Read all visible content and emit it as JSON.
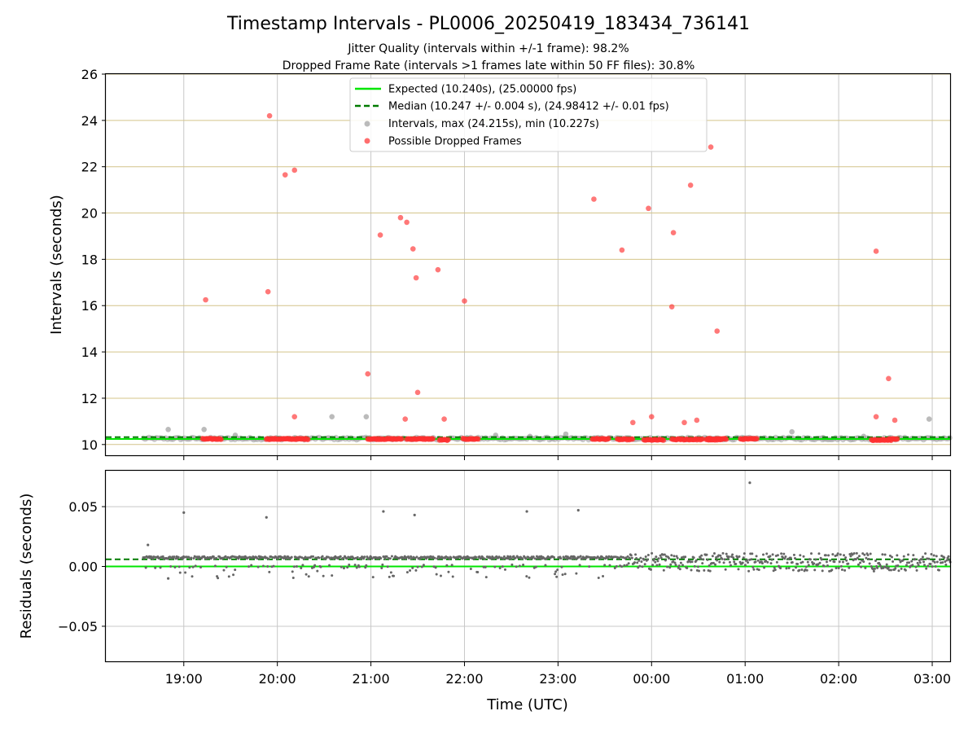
{
  "figure": {
    "title": "Timestamp Intervals - PL0006_20250419_183434_736141",
    "subtitle_1": "Jitter Quality (intervals within +/-1 frame): 98.2%",
    "subtitle_2": "Dropped Frame Rate (intervals >1 frames late within 50 FF files): 30.8%"
  },
  "colors": {
    "expected": "#00e600",
    "median": "#007a00",
    "interval": "#9e9e9e",
    "dropped": "#ff3030",
    "residual": "#666666",
    "hgrid_top": "#d4c48a",
    "vgrid": "#c8c8c8"
  },
  "chart_data": [
    {
      "type": "scatter",
      "name": "intervals",
      "ylabel": "Intervals (seconds)",
      "xlabel": "",
      "xlim": [
        "18:10",
        "03:12"
      ],
      "ylim": [
        9.5,
        26
      ],
      "x_ticks": [
        "19:00",
        "20:00",
        "21:00",
        "22:00",
        "23:00",
        "00:00",
        "01:00",
        "02:00",
        "03:00"
      ],
      "y_ticks": [
        "10",
        "12",
        "14",
        "16",
        "18",
        "20",
        "22",
        "24",
        "26"
      ],
      "legend": {
        "placement": "top-center",
        "entries": [
          "Expected (10.240s), (25.00000 fps)",
          "Median (10.247 +/- 0.004 s), (24.98412 +/- 0.01 fps)",
          "Intervals, max (24.215s), min (10.227s)",
          "Possible Dropped Frames"
        ]
      },
      "expected_value": 10.24,
      "median_value": 10.247,
      "dropped_clusters": [
        {
          "x": [
            "19:12",
            "19:24"
          ],
          "y": 10.24
        },
        {
          "x": [
            "19:53",
            "20:20"
          ],
          "y": 10.24
        },
        {
          "x": [
            "20:58",
            "21:20"
          ],
          "y": 10.24
        },
        {
          "x": [
            "21:23",
            "21:40"
          ],
          "y": 10.24
        },
        {
          "x": [
            "21:44",
            "21:50"
          ],
          "y": 10.2
        },
        {
          "x": [
            "21:59",
            "22:09"
          ],
          "y": 10.24
        },
        {
          "x": [
            "23:22",
            "23:33"
          ],
          "y": 10.24
        },
        {
          "x": [
            "23:38",
            "23:48"
          ],
          "y": 10.22
        },
        {
          "x": [
            "23:55",
            "00:08"
          ],
          "y": 10.2
        },
        {
          "x": [
            "00:13",
            "00:33"
          ],
          "y": 10.22
        },
        {
          "x": [
            "00:35",
            "00:45"
          ],
          "y": 10.21
        },
        {
          "x": [
            "00:36",
            "00:48"
          ],
          "y": 10.24
        },
        {
          "x": [
            "00:57",
            "01:08"
          ],
          "y": 10.24
        },
        {
          "x": [
            "02:21",
            "02:34"
          ],
          "y": 10.2
        },
        {
          "x": [
            "02:32",
            "02:38"
          ],
          "y": 10.24
        }
      ],
      "dropped_points": [
        {
          "x": "19:14",
          "y": 16.25
        },
        {
          "x": "19:54",
          "y": 16.6
        },
        {
          "x": "19:55",
          "y": 24.2
        },
        {
          "x": "20:05",
          "y": 21.65
        },
        {
          "x": "20:11",
          "y": 21.85
        },
        {
          "x": "20:11",
          "y": 11.2
        },
        {
          "x": "20:58",
          "y": 13.05
        },
        {
          "x": "21:06",
          "y": 19.05
        },
        {
          "x": "21:19",
          "y": 19.8
        },
        {
          "x": "21:22",
          "y": 11.1
        },
        {
          "x": "21:23",
          "y": 19.6
        },
        {
          "x": "21:27",
          "y": 18.45
        },
        {
          "x": "21:29",
          "y": 17.2
        },
        {
          "x": "21:30",
          "y": 12.25
        },
        {
          "x": "21:43",
          "y": 17.55
        },
        {
          "x": "21:47",
          "y": 11.1
        },
        {
          "x": "22:00",
          "y": 16.2
        },
        {
          "x": "23:23",
          "y": 20.6
        },
        {
          "x": "23:41",
          "y": 18.4
        },
        {
          "x": "23:48",
          "y": 10.95
        },
        {
          "x": "23:58",
          "y": 20.2
        },
        {
          "x": "00:00",
          "y": 11.2
        },
        {
          "x": "00:13",
          "y": 15.95
        },
        {
          "x": "00:14",
          "y": 19.15
        },
        {
          "x": "00:21",
          "y": 10.95
        },
        {
          "x": "00:25",
          "y": 21.2
        },
        {
          "x": "00:29",
          "y": 11.05
        },
        {
          "x": "00:38",
          "y": 22.85
        },
        {
          "x": "00:42",
          "y": 14.9
        },
        {
          "x": "02:24",
          "y": 18.35
        },
        {
          "x": "02:24",
          "y": 11.2
        },
        {
          "x": "02:32",
          "y": 12.85
        },
        {
          "x": "02:36",
          "y": 11.05
        }
      ],
      "interval_outliers": [
        {
          "x": "18:50",
          "y": 10.65
        },
        {
          "x": "19:13",
          "y": 10.65
        },
        {
          "x": "19:33",
          "y": 10.4
        },
        {
          "x": "20:35",
          "y": 11.2
        },
        {
          "x": "20:57",
          "y": 11.2
        },
        {
          "x": "22:20",
          "y": 10.4
        },
        {
          "x": "22:42",
          "y": 10.35
        },
        {
          "x": "23:05",
          "y": 10.45
        },
        {
          "x": "01:30",
          "y": 10.55
        },
        {
          "x": "01:50",
          "y": 10.3
        },
        {
          "x": "02:16",
          "y": 10.35
        },
        {
          "x": "02:58",
          "y": 11.1
        }
      ]
    },
    {
      "type": "scatter",
      "name": "residuals",
      "xlabel": "Time (UTC)",
      "ylabel": "Residuals (seconds)",
      "xlim": [
        "18:10",
        "03:12"
      ],
      "ylim": [
        -0.08,
        0.08
      ],
      "x_ticks": [
        "19:00",
        "20:00",
        "21:00",
        "22:00",
        "23:00",
        "00:00",
        "01:00",
        "02:00",
        "03:00"
      ],
      "y_ticks": [
        "0.05",
        "0.00",
        "−0.05"
      ],
      "expected_value": 0.0,
      "median_value": 0.006,
      "outliers": [
        {
          "x": "18:37",
          "y": 0.018
        },
        {
          "x": "18:50",
          "y": -0.01
        },
        {
          "x": "19:00",
          "y": 0.045
        },
        {
          "x": "19:53",
          "y": 0.041
        },
        {
          "x": "21:08",
          "y": 0.046
        },
        {
          "x": "21:28",
          "y": 0.043
        },
        {
          "x": "22:40",
          "y": 0.046
        },
        {
          "x": "23:13",
          "y": 0.047
        },
        {
          "x": "01:03",
          "y": 0.07
        }
      ]
    }
  ]
}
